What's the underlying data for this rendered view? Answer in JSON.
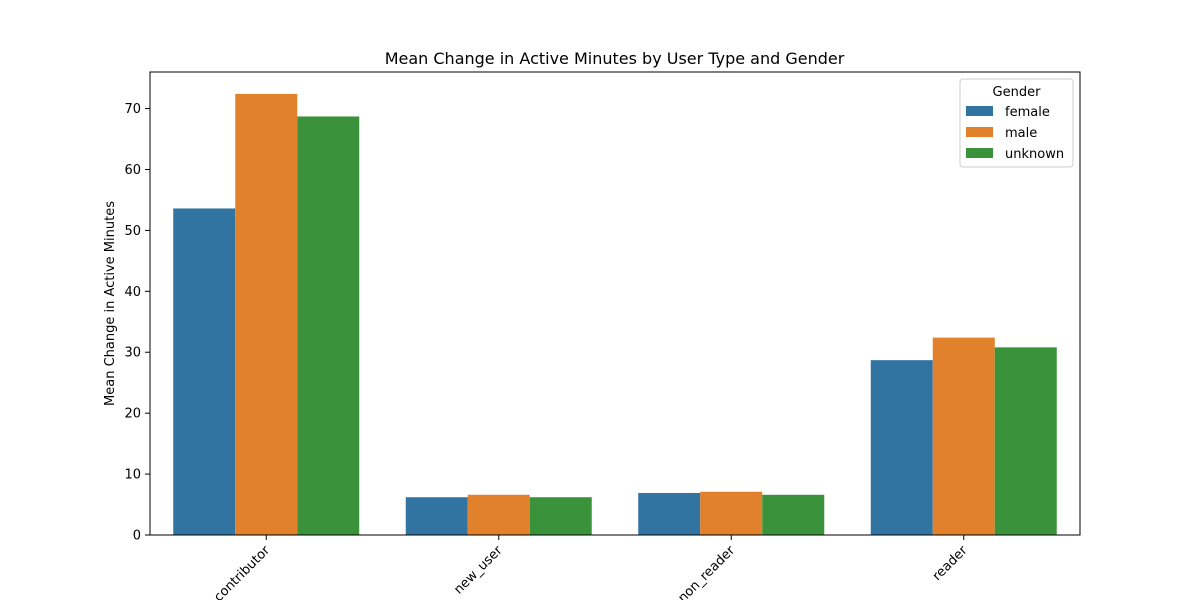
{
  "chart_data": {
    "type": "bar",
    "title": "Mean Change in Active Minutes by User Type and Gender",
    "xlabel": "",
    "ylabel": "Mean Change in Active Minutes",
    "categories": [
      "contributor",
      "new_user",
      "non_reader",
      "reader"
    ],
    "ylim": [
      0,
      76
    ],
    "yticks": [
      0,
      10,
      20,
      30,
      40,
      50,
      60,
      70
    ],
    "grid": false,
    "legend": {
      "title": "Gender",
      "placement": "top-right"
    },
    "series": [
      {
        "name": "female",
        "color": "#3274a1",
        "values": [
          53.6,
          6.2,
          6.9,
          28.7
        ]
      },
      {
        "name": "male",
        "color": "#e1812c",
        "values": [
          72.4,
          6.6,
          7.1,
          32.4
        ]
      },
      {
        "name": "unknown",
        "color": "#3a923a",
        "values": [
          68.7,
          6.2,
          6.6,
          30.8
        ]
      }
    ]
  }
}
